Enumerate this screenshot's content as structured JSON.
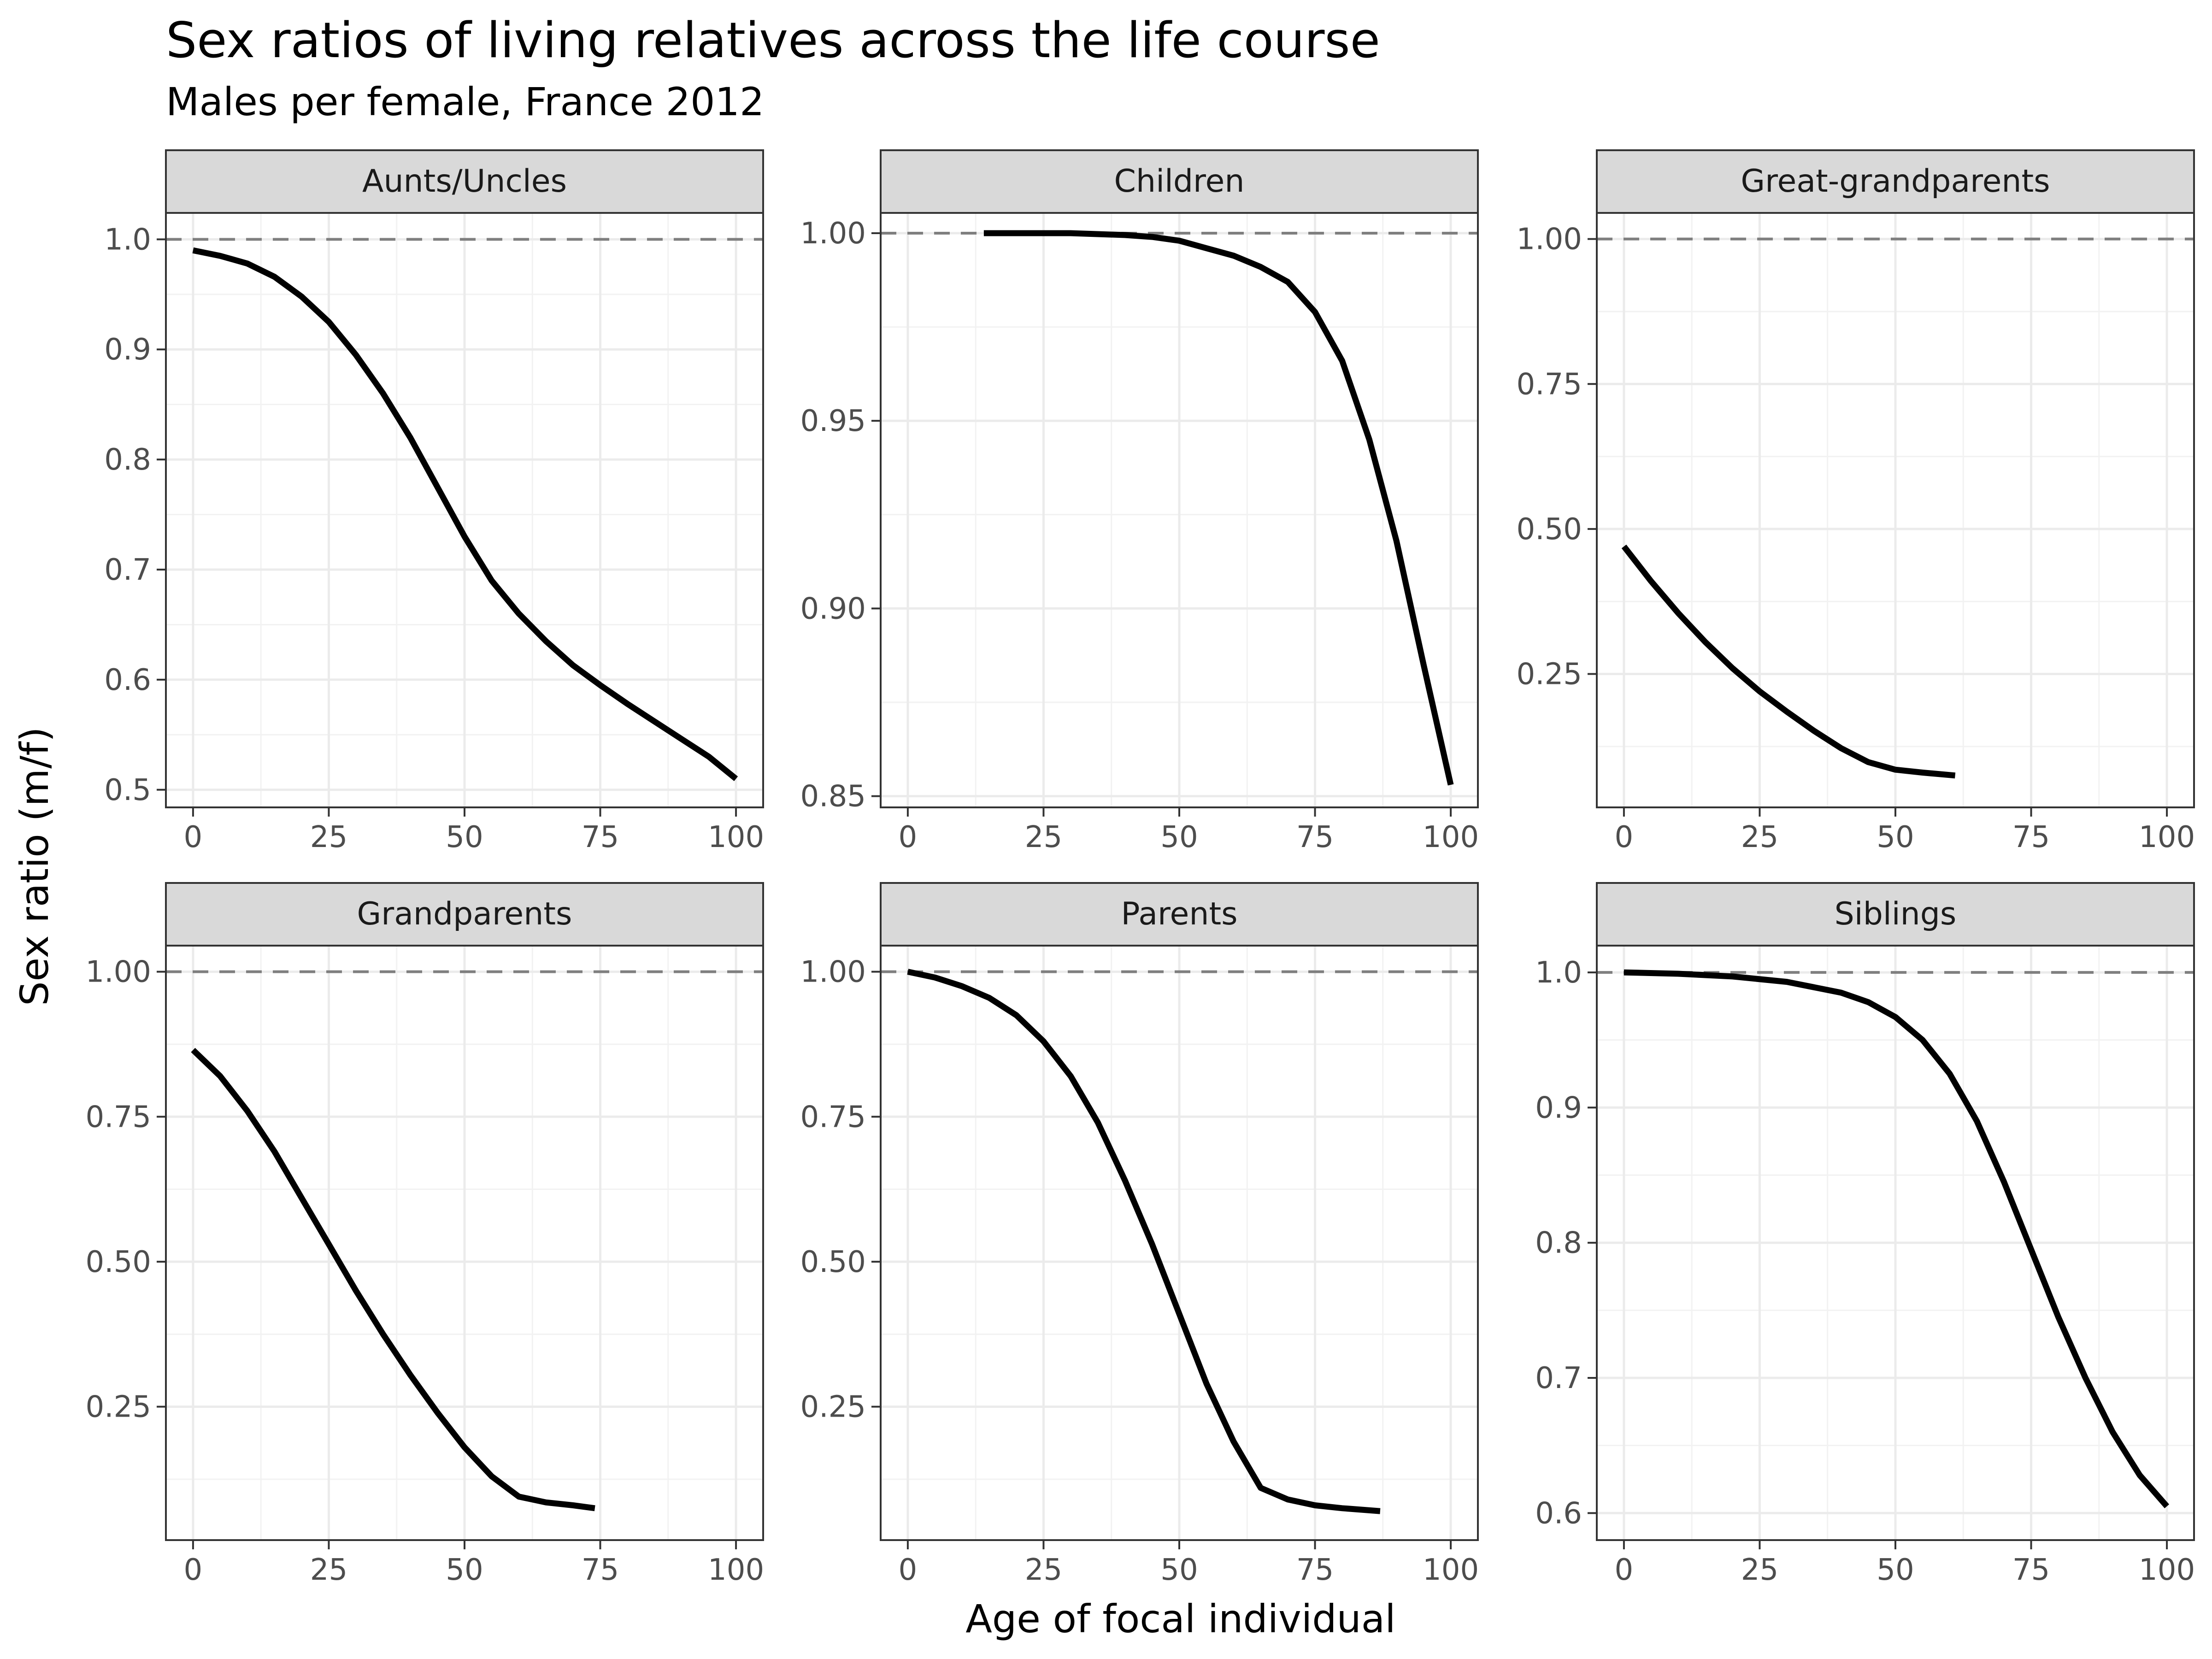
{
  "chart_data": {
    "type": "line",
    "title": "Sex ratios of living relatives across the life course",
    "subtitle": "Males per female, France 2012",
    "xlabel": "Age of focal individual",
    "ylabel": "Sex ratio (m/f)",
    "layout": "facet grid, 2 rows x 3 columns, free y scales",
    "reference_line": {
      "y": 1.0,
      "style": "dashed",
      "color": "#7f7f7f"
    },
    "line_color": "#000000",
    "grid": true,
    "legend": "none",
    "panels": [
      {
        "name": "Aunts/Uncles",
        "xlim": [
          -5,
          105
        ],
        "ylim": [
          0.484,
          1.024
        ],
        "x_ticks": [
          0,
          25,
          50,
          75,
          100
        ],
        "x_tick_labels": [
          "0",
          "25",
          "50",
          "75",
          "100"
        ],
        "y_ticks": [
          0.5,
          0.6,
          0.7,
          0.8,
          0.9,
          1.0
        ],
        "y_tick_labels": [
          "0.5",
          "0.6",
          "0.7",
          "0.8",
          "0.9",
          "1.0"
        ],
        "x": [
          0,
          5,
          10,
          15,
          20,
          25,
          30,
          35,
          40,
          45,
          50,
          55,
          60,
          65,
          70,
          75,
          80,
          85,
          90,
          95,
          100
        ],
        "y": [
          0.99,
          0.985,
          0.978,
          0.966,
          0.948,
          0.925,
          0.895,
          0.86,
          0.82,
          0.775,
          0.73,
          0.69,
          0.66,
          0.635,
          0.613,
          0.595,
          0.578,
          0.562,
          0.546,
          0.53,
          0.51
        ]
      },
      {
        "name": "Children",
        "xlim": [
          -5,
          105
        ],
        "ylim": [
          0.847,
          1.0054
        ],
        "x_ticks": [
          0,
          25,
          50,
          75,
          100
        ],
        "x_tick_labels": [
          "0",
          "25",
          "50",
          "75",
          "100"
        ],
        "y_ticks": [
          0.85,
          0.9,
          0.95,
          1.0
        ],
        "y_tick_labels": [
          "0.85",
          "0.90",
          "0.95",
          "1.00"
        ],
        "x": [
          14,
          20,
          30,
          40,
          45,
          50,
          55,
          60,
          65,
          70,
          75,
          80,
          85,
          90,
          95,
          100
        ],
        "y": [
          1.0,
          1.0,
          1.0,
          0.9995,
          0.999,
          0.998,
          0.996,
          0.994,
          0.991,
          0.987,
          0.979,
          0.966,
          0.945,
          0.918,
          0.885,
          0.853
        ]
      },
      {
        "name": "Great-grandparents",
        "xlim": [
          -5,
          105
        ],
        "ylim": [
          0.02,
          1.045
        ],
        "x_ticks": [
          0,
          25,
          50,
          75,
          100
        ],
        "x_tick_labels": [
          "0",
          "25",
          "50",
          "75",
          "100"
        ],
        "y_ticks": [
          0.25,
          0.5,
          0.75,
          1.0
        ],
        "y_tick_labels": [
          "0.25",
          "0.50",
          "0.75",
          "1.00"
        ],
        "x": [
          0,
          5,
          10,
          15,
          20,
          25,
          30,
          35,
          40,
          45,
          50,
          55,
          61
        ],
        "y": [
          0.47,
          0.41,
          0.355,
          0.305,
          0.26,
          0.22,
          0.185,
          0.152,
          0.122,
          0.098,
          0.085,
          0.08,
          0.075
        ]
      },
      {
        "name": "Grandparents",
        "xlim": [
          -5,
          105
        ],
        "ylim": [
          0.02,
          1.045
        ],
        "x_ticks": [
          0,
          25,
          50,
          75,
          100
        ],
        "x_tick_labels": [
          "0",
          "25",
          "50",
          "75",
          "100"
        ],
        "y_ticks": [
          0.25,
          0.5,
          0.75,
          1.0
        ],
        "y_tick_labels": [
          "0.25",
          "0.50",
          "0.75",
          "1.00"
        ],
        "x": [
          0,
          5,
          10,
          15,
          20,
          25,
          30,
          35,
          40,
          45,
          50,
          55,
          60,
          65,
          70,
          74
        ],
        "y": [
          0.865,
          0.82,
          0.76,
          0.69,
          0.61,
          0.53,
          0.45,
          0.375,
          0.305,
          0.24,
          0.18,
          0.13,
          0.095,
          0.085,
          0.08,
          0.075
        ]
      },
      {
        "name": "Parents",
        "xlim": [
          -5,
          105
        ],
        "ylim": [
          0.02,
          1.045
        ],
        "x_ticks": [
          0,
          25,
          50,
          75,
          100
        ],
        "x_tick_labels": [
          "0",
          "25",
          "50",
          "75",
          "100"
        ],
        "y_ticks": [
          0.25,
          0.5,
          0.75,
          1.0
        ],
        "y_tick_labels": [
          "0.25",
          "0.50",
          "0.75",
          "1.00"
        ],
        "x": [
          0,
          5,
          10,
          15,
          20,
          25,
          30,
          35,
          40,
          45,
          50,
          55,
          60,
          65,
          70,
          75,
          80,
          87
        ],
        "y": [
          1.0,
          0.99,
          0.975,
          0.955,
          0.925,
          0.88,
          0.82,
          0.74,
          0.64,
          0.53,
          0.41,
          0.29,
          0.19,
          0.11,
          0.09,
          0.08,
          0.075,
          0.07
        ]
      },
      {
        "name": "Siblings",
        "xlim": [
          -5,
          105
        ],
        "ylim": [
          0.58,
          1.0198
        ],
        "x_ticks": [
          0,
          25,
          50,
          75,
          100
        ],
        "x_tick_labels": [
          "0",
          "25",
          "50",
          "75",
          "100"
        ],
        "y_ticks": [
          0.6,
          0.7,
          0.8,
          0.9,
          1.0
        ],
        "y_tick_labels": [
          "0.6",
          "0.7",
          "0.8",
          "0.9",
          "1.0"
        ],
        "x": [
          0,
          10,
          20,
          30,
          40,
          45,
          50,
          55,
          60,
          65,
          70,
          75,
          80,
          85,
          90,
          95,
          100
        ],
        "y": [
          1.0,
          0.999,
          0.997,
          0.993,
          0.985,
          0.978,
          0.967,
          0.95,
          0.925,
          0.89,
          0.845,
          0.795,
          0.745,
          0.7,
          0.66,
          0.628,
          0.605
        ]
      }
    ]
  }
}
